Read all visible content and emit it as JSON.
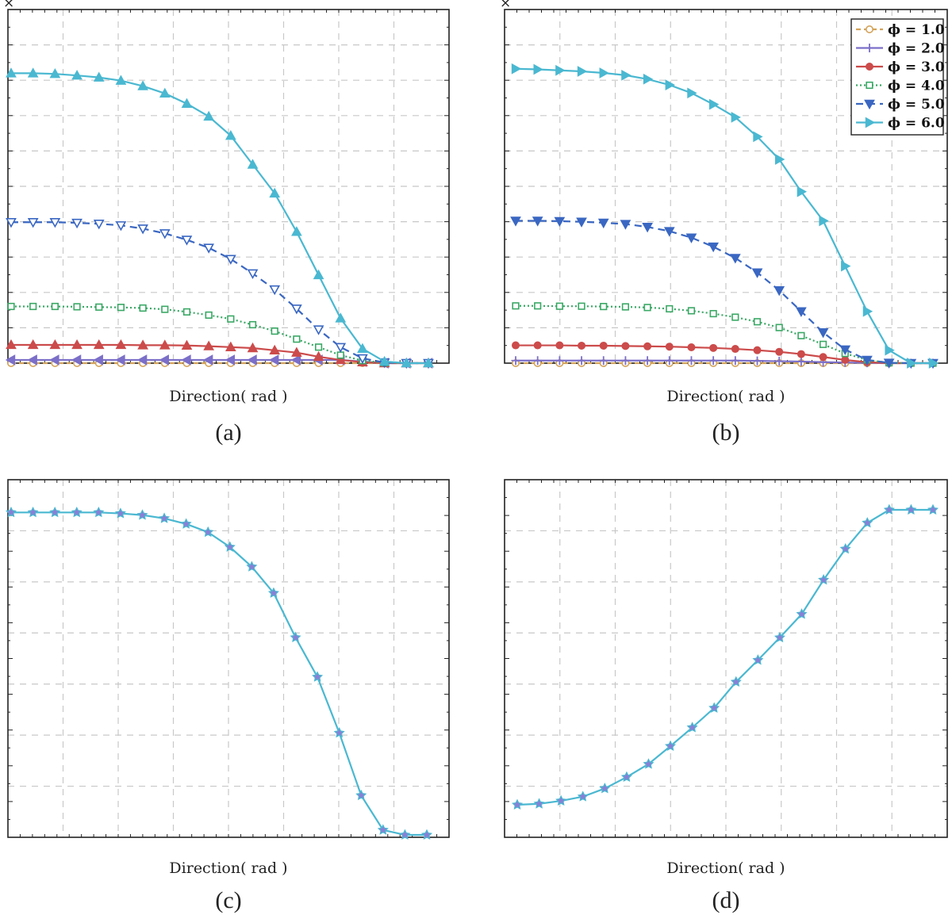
{
  "figure": {
    "panels": [
      "a",
      "b",
      "c",
      "d"
    ]
  },
  "chart_data": [
    {
      "id": "a",
      "type": "line",
      "caption": "(a)",
      "xlabel": "Direction( rad )",
      "ylabel": "",
      "multiplier_symbol": "×",
      "xlim": [
        0,
        20
      ],
      "ylim": [
        0,
        10
      ],
      "grid": true,
      "legend": null,
      "x": [
        0,
        1,
        2,
        3,
        4,
        5,
        6,
        7,
        8,
        9,
        10,
        11,
        12,
        13,
        14,
        15,
        16,
        17,
        18,
        19
      ],
      "series": [
        {
          "key": "phi1",
          "color": "#d4a35a",
          "dash": "6,4",
          "marker": "circle-open",
          "values": [
            0,
            0,
            0,
            0,
            0,
            0,
            0,
            0,
            0,
            0,
            0,
            0,
            0,
            0,
            0,
            0,
            0,
            0,
            0,
            0
          ]
        },
        {
          "key": "phi2",
          "color": "#7b6fc9",
          "dash": "",
          "marker": "triangle-left",
          "values": [
            0.1,
            0.1,
            0.1,
            0.1,
            0.1,
            0.1,
            0.1,
            0.1,
            0.1,
            0.1,
            0.1,
            0.1,
            0.1,
            0.1,
            0.1,
            0.1,
            0.05,
            0,
            0,
            0
          ]
        },
        {
          "key": "phi3",
          "color": "#cc4b4b",
          "dash": "",
          "marker": "triangle-up",
          "values": [
            0.57,
            0.57,
            0.57,
            0.57,
            0.57,
            0.57,
            0.56,
            0.56,
            0.55,
            0.53,
            0.5,
            0.47,
            0.4,
            0.33,
            0.2,
            0.1,
            0.03,
            0,
            0,
            0
          ]
        },
        {
          "key": "phi4",
          "color": "#3aa865",
          "dash": "2,3",
          "marker": "square-open",
          "values": [
            1.77,
            1.77,
            1.77,
            1.76,
            1.75,
            1.74,
            1.72,
            1.68,
            1.6,
            1.5,
            1.38,
            1.2,
            1.0,
            0.75,
            0.5,
            0.25,
            0.08,
            0.01,
            0,
            0
          ]
        },
        {
          "key": "phi5",
          "color": "#3a67c2",
          "dash": "9,6",
          "marker": "triangle-down-open",
          "values": [
            4.4,
            4.4,
            4.4,
            4.38,
            4.35,
            4.3,
            4.2,
            4.05,
            3.85,
            3.6,
            3.25,
            2.8,
            2.3,
            1.7,
            1.05,
            0.5,
            0.15,
            0.02,
            0,
            0
          ]
        },
        {
          "key": "phi6",
          "color": "#4ab8d1",
          "dash": "",
          "marker": "triangle-up",
          "values": [
            9.05,
            9.05,
            9.03,
            8.98,
            8.92,
            8.82,
            8.65,
            8.42,
            8.1,
            7.7,
            7.1,
            6.2,
            5.3,
            4.1,
            2.75,
            1.4,
            0.45,
            0.05,
            0,
            0
          ]
        }
      ]
    },
    {
      "id": "b",
      "type": "line",
      "caption": "(b)",
      "xlabel": "Direction( rad )",
      "ylabel": "",
      "multiplier_symbol": "×",
      "xlim": [
        0,
        20
      ],
      "ylim": [
        0,
        10
      ],
      "grid": true,
      "legend": {
        "placement": "top-right",
        "entries": [
          {
            "key": "phi1",
            "label": "ϕ = 1.0"
          },
          {
            "key": "phi2",
            "label": "ϕ = 2.0"
          },
          {
            "key": "phi3",
            "label": "ϕ = 3.0"
          },
          {
            "key": "phi4",
            "label": "ϕ = 4.0"
          },
          {
            "key": "phi5",
            "label": "ϕ = 5.0"
          },
          {
            "key": "phi6",
            "label": "ϕ = 6.0"
          }
        ]
      },
      "x": [
        0,
        1,
        2,
        3,
        4,
        5,
        6,
        7,
        8,
        9,
        10,
        11,
        12,
        13,
        14,
        15,
        16,
        17,
        18,
        19
      ],
      "series": [
        {
          "key": "phi1",
          "color": "#d4a35a",
          "dash": "6,4",
          "marker": "circle-open",
          "values": [
            0,
            0,
            0,
            0,
            0,
            0,
            0,
            0,
            0,
            0,
            0,
            0,
            0,
            0,
            0,
            0,
            0,
            0,
            0,
            0
          ]
        },
        {
          "key": "phi2",
          "color": "#7b6fc9",
          "dash": "",
          "marker": "plus",
          "values": [
            0.08,
            0.08,
            0.08,
            0.08,
            0.08,
            0.08,
            0.08,
            0.08,
            0.08,
            0.08,
            0.08,
            0.07,
            0.06,
            0.05,
            0.03,
            0.02,
            0.01,
            0,
            0,
            0
          ]
        },
        {
          "key": "phi3",
          "color": "#cc4b4b",
          "dash": "",
          "marker": "circle",
          "values": [
            0.55,
            0.55,
            0.55,
            0.54,
            0.54,
            0.53,
            0.52,
            0.51,
            0.49,
            0.47,
            0.44,
            0.4,
            0.35,
            0.28,
            0.19,
            0.1,
            0.03,
            0,
            0,
            0
          ]
        },
        {
          "key": "phi4",
          "color": "#3aa865",
          "dash": "2,3",
          "marker": "square-open",
          "values": [
            1.77,
            1.77,
            1.76,
            1.76,
            1.75,
            1.74,
            1.72,
            1.68,
            1.62,
            1.53,
            1.42,
            1.28,
            1.1,
            0.85,
            0.58,
            0.3,
            0.1,
            0.01,
            0,
            0
          ]
        },
        {
          "key": "phi5",
          "color": "#3a67c2",
          "dash": "9,6",
          "marker": "triangle-down",
          "values": [
            4.4,
            4.4,
            4.39,
            4.37,
            4.34,
            4.3,
            4.21,
            4.08,
            3.88,
            3.6,
            3.25,
            2.8,
            2.25,
            1.6,
            0.95,
            0.42,
            0.1,
            0.01,
            0,
            0
          ]
        },
        {
          "key": "phi6",
          "color": "#4ab8d1",
          "dash": "",
          "marker": "triangle-right",
          "values": [
            9.1,
            9.08,
            9.05,
            9.02,
            8.97,
            8.9,
            8.78,
            8.6,
            8.35,
            8.0,
            7.6,
            7.0,
            6.3,
            5.3,
            4.4,
            3.0,
            1.6,
            0.4,
            0,
            0
          ]
        }
      ]
    },
    {
      "id": "c",
      "type": "line",
      "caption": "(c)",
      "xlabel": "Direction( rad )",
      "ylabel": "",
      "xlim": [
        0,
        20
      ],
      "ylim": [
        0,
        10
      ],
      "grid": true,
      "legend": null,
      "x": [
        0,
        1,
        2,
        3,
        4,
        5,
        6,
        7,
        8,
        9,
        10,
        11,
        12,
        13,
        14,
        15,
        16,
        17,
        18,
        19
      ],
      "series": [
        {
          "key": "all",
          "color": "#4ab8d1",
          "dash": "",
          "marker": "star",
          "values": [
            9.8,
            9.8,
            9.8,
            9.8,
            9.8,
            9.77,
            9.72,
            9.62,
            9.45,
            9.2,
            8.75,
            8.15,
            7.35,
            6.0,
            4.8,
            3.1,
            1.2,
            0.15,
            0,
            0
          ]
        }
      ]
    },
    {
      "id": "d",
      "type": "line",
      "caption": "(d)",
      "xlabel": "Direction( rad )",
      "ylabel": "",
      "xlim": [
        0,
        20
      ],
      "ylim": [
        0,
        10
      ],
      "grid": true,
      "legend": null,
      "x": [
        0,
        1,
        2,
        3,
        4,
        5,
        6,
        7,
        8,
        9,
        10,
        11,
        12,
        13,
        14,
        15,
        16,
        17,
        18,
        19
      ],
      "series": [
        {
          "key": "all",
          "color": "#4ab8d1",
          "dash": "",
          "marker": "star",
          "values": [
            0.95,
            0.98,
            1.07,
            1.2,
            1.45,
            1.8,
            2.2,
            2.75,
            3.32,
            3.92,
            4.72,
            5.39,
            6.08,
            6.8,
            7.85,
            8.8,
            9.6,
            10.0,
            10.0,
            10.0
          ]
        }
      ]
    }
  ]
}
